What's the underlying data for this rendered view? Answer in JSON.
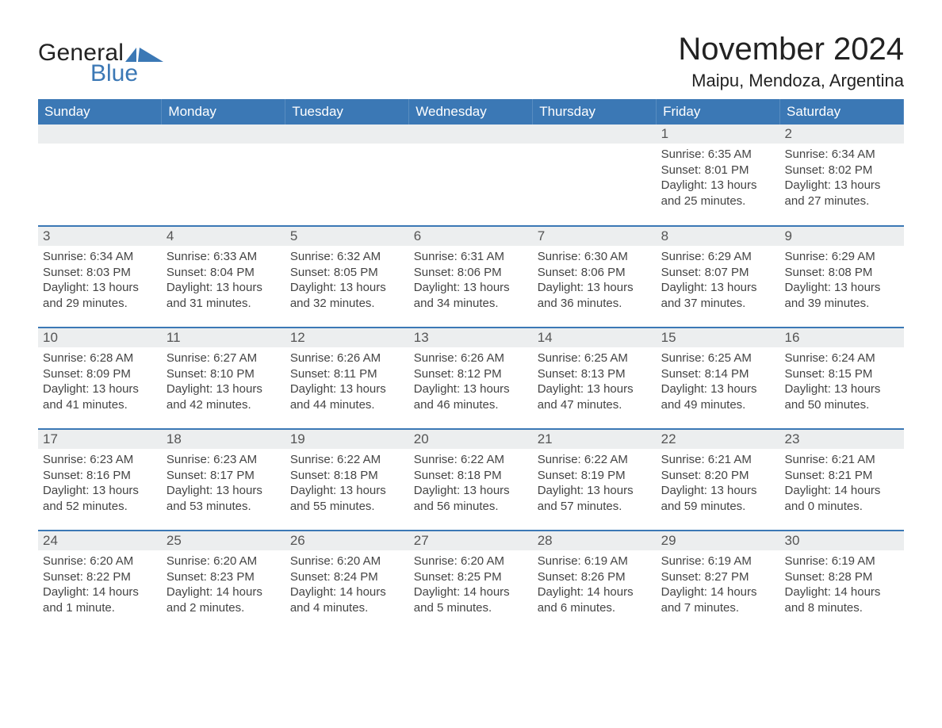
{
  "brand": {
    "part1": "General",
    "part2": "Blue"
  },
  "title": "November 2024",
  "location": "Maipu, Mendoza, Argentina",
  "colors": {
    "brand_blue": "#3b78b5",
    "row_bg": "#eceeef",
    "white": "#ffffff",
    "text": "#333333"
  },
  "weekday_headers": [
    "Sunday",
    "Monday",
    "Tuesday",
    "Wednesday",
    "Thursday",
    "Friday",
    "Saturday"
  ],
  "weeks": [
    [
      null,
      null,
      null,
      null,
      null,
      {
        "day": "1",
        "sunrise": "Sunrise: 6:35 AM",
        "sunset": "Sunset: 8:01 PM",
        "daylight1": "Daylight: 13 hours",
        "daylight2": "and 25 minutes."
      },
      {
        "day": "2",
        "sunrise": "Sunrise: 6:34 AM",
        "sunset": "Sunset: 8:02 PM",
        "daylight1": "Daylight: 13 hours",
        "daylight2": "and 27 minutes."
      }
    ],
    [
      {
        "day": "3",
        "sunrise": "Sunrise: 6:34 AM",
        "sunset": "Sunset: 8:03 PM",
        "daylight1": "Daylight: 13 hours",
        "daylight2": "and 29 minutes."
      },
      {
        "day": "4",
        "sunrise": "Sunrise: 6:33 AM",
        "sunset": "Sunset: 8:04 PM",
        "daylight1": "Daylight: 13 hours",
        "daylight2": "and 31 minutes."
      },
      {
        "day": "5",
        "sunrise": "Sunrise: 6:32 AM",
        "sunset": "Sunset: 8:05 PM",
        "daylight1": "Daylight: 13 hours",
        "daylight2": "and 32 minutes."
      },
      {
        "day": "6",
        "sunrise": "Sunrise: 6:31 AM",
        "sunset": "Sunset: 8:06 PM",
        "daylight1": "Daylight: 13 hours",
        "daylight2": "and 34 minutes."
      },
      {
        "day": "7",
        "sunrise": "Sunrise: 6:30 AM",
        "sunset": "Sunset: 8:06 PM",
        "daylight1": "Daylight: 13 hours",
        "daylight2": "and 36 minutes."
      },
      {
        "day": "8",
        "sunrise": "Sunrise: 6:29 AM",
        "sunset": "Sunset: 8:07 PM",
        "daylight1": "Daylight: 13 hours",
        "daylight2": "and 37 minutes."
      },
      {
        "day": "9",
        "sunrise": "Sunrise: 6:29 AM",
        "sunset": "Sunset: 8:08 PM",
        "daylight1": "Daylight: 13 hours",
        "daylight2": "and 39 minutes."
      }
    ],
    [
      {
        "day": "10",
        "sunrise": "Sunrise: 6:28 AM",
        "sunset": "Sunset: 8:09 PM",
        "daylight1": "Daylight: 13 hours",
        "daylight2": "and 41 minutes."
      },
      {
        "day": "11",
        "sunrise": "Sunrise: 6:27 AM",
        "sunset": "Sunset: 8:10 PM",
        "daylight1": "Daylight: 13 hours",
        "daylight2": "and 42 minutes."
      },
      {
        "day": "12",
        "sunrise": "Sunrise: 6:26 AM",
        "sunset": "Sunset: 8:11 PM",
        "daylight1": "Daylight: 13 hours",
        "daylight2": "and 44 minutes."
      },
      {
        "day": "13",
        "sunrise": "Sunrise: 6:26 AM",
        "sunset": "Sunset: 8:12 PM",
        "daylight1": "Daylight: 13 hours",
        "daylight2": "and 46 minutes."
      },
      {
        "day": "14",
        "sunrise": "Sunrise: 6:25 AM",
        "sunset": "Sunset: 8:13 PM",
        "daylight1": "Daylight: 13 hours",
        "daylight2": "and 47 minutes."
      },
      {
        "day": "15",
        "sunrise": "Sunrise: 6:25 AM",
        "sunset": "Sunset: 8:14 PM",
        "daylight1": "Daylight: 13 hours",
        "daylight2": "and 49 minutes."
      },
      {
        "day": "16",
        "sunrise": "Sunrise: 6:24 AM",
        "sunset": "Sunset: 8:15 PM",
        "daylight1": "Daylight: 13 hours",
        "daylight2": "and 50 minutes."
      }
    ],
    [
      {
        "day": "17",
        "sunrise": "Sunrise: 6:23 AM",
        "sunset": "Sunset: 8:16 PM",
        "daylight1": "Daylight: 13 hours",
        "daylight2": "and 52 minutes."
      },
      {
        "day": "18",
        "sunrise": "Sunrise: 6:23 AM",
        "sunset": "Sunset: 8:17 PM",
        "daylight1": "Daylight: 13 hours",
        "daylight2": "and 53 minutes."
      },
      {
        "day": "19",
        "sunrise": "Sunrise: 6:22 AM",
        "sunset": "Sunset: 8:18 PM",
        "daylight1": "Daylight: 13 hours",
        "daylight2": "and 55 minutes."
      },
      {
        "day": "20",
        "sunrise": "Sunrise: 6:22 AM",
        "sunset": "Sunset: 8:18 PM",
        "daylight1": "Daylight: 13 hours",
        "daylight2": "and 56 minutes."
      },
      {
        "day": "21",
        "sunrise": "Sunrise: 6:22 AM",
        "sunset": "Sunset: 8:19 PM",
        "daylight1": "Daylight: 13 hours",
        "daylight2": "and 57 minutes."
      },
      {
        "day": "22",
        "sunrise": "Sunrise: 6:21 AM",
        "sunset": "Sunset: 8:20 PM",
        "daylight1": "Daylight: 13 hours",
        "daylight2": "and 59 minutes."
      },
      {
        "day": "23",
        "sunrise": "Sunrise: 6:21 AM",
        "sunset": "Sunset: 8:21 PM",
        "daylight1": "Daylight: 14 hours",
        "daylight2": "and 0 minutes."
      }
    ],
    [
      {
        "day": "24",
        "sunrise": "Sunrise: 6:20 AM",
        "sunset": "Sunset: 8:22 PM",
        "daylight1": "Daylight: 14 hours",
        "daylight2": "and 1 minute."
      },
      {
        "day": "25",
        "sunrise": "Sunrise: 6:20 AM",
        "sunset": "Sunset: 8:23 PM",
        "daylight1": "Daylight: 14 hours",
        "daylight2": "and 2 minutes."
      },
      {
        "day": "26",
        "sunrise": "Sunrise: 6:20 AM",
        "sunset": "Sunset: 8:24 PM",
        "daylight1": "Daylight: 14 hours",
        "daylight2": "and 4 minutes."
      },
      {
        "day": "27",
        "sunrise": "Sunrise: 6:20 AM",
        "sunset": "Sunset: 8:25 PM",
        "daylight1": "Daylight: 14 hours",
        "daylight2": "and 5 minutes."
      },
      {
        "day": "28",
        "sunrise": "Sunrise: 6:19 AM",
        "sunset": "Sunset: 8:26 PM",
        "daylight1": "Daylight: 14 hours",
        "daylight2": "and 6 minutes."
      },
      {
        "day": "29",
        "sunrise": "Sunrise: 6:19 AM",
        "sunset": "Sunset: 8:27 PM",
        "daylight1": "Daylight: 14 hours",
        "daylight2": "and 7 minutes."
      },
      {
        "day": "30",
        "sunrise": "Sunrise: 6:19 AM",
        "sunset": "Sunset: 8:28 PM",
        "daylight1": "Daylight: 14 hours",
        "daylight2": "and 8 minutes."
      }
    ]
  ]
}
